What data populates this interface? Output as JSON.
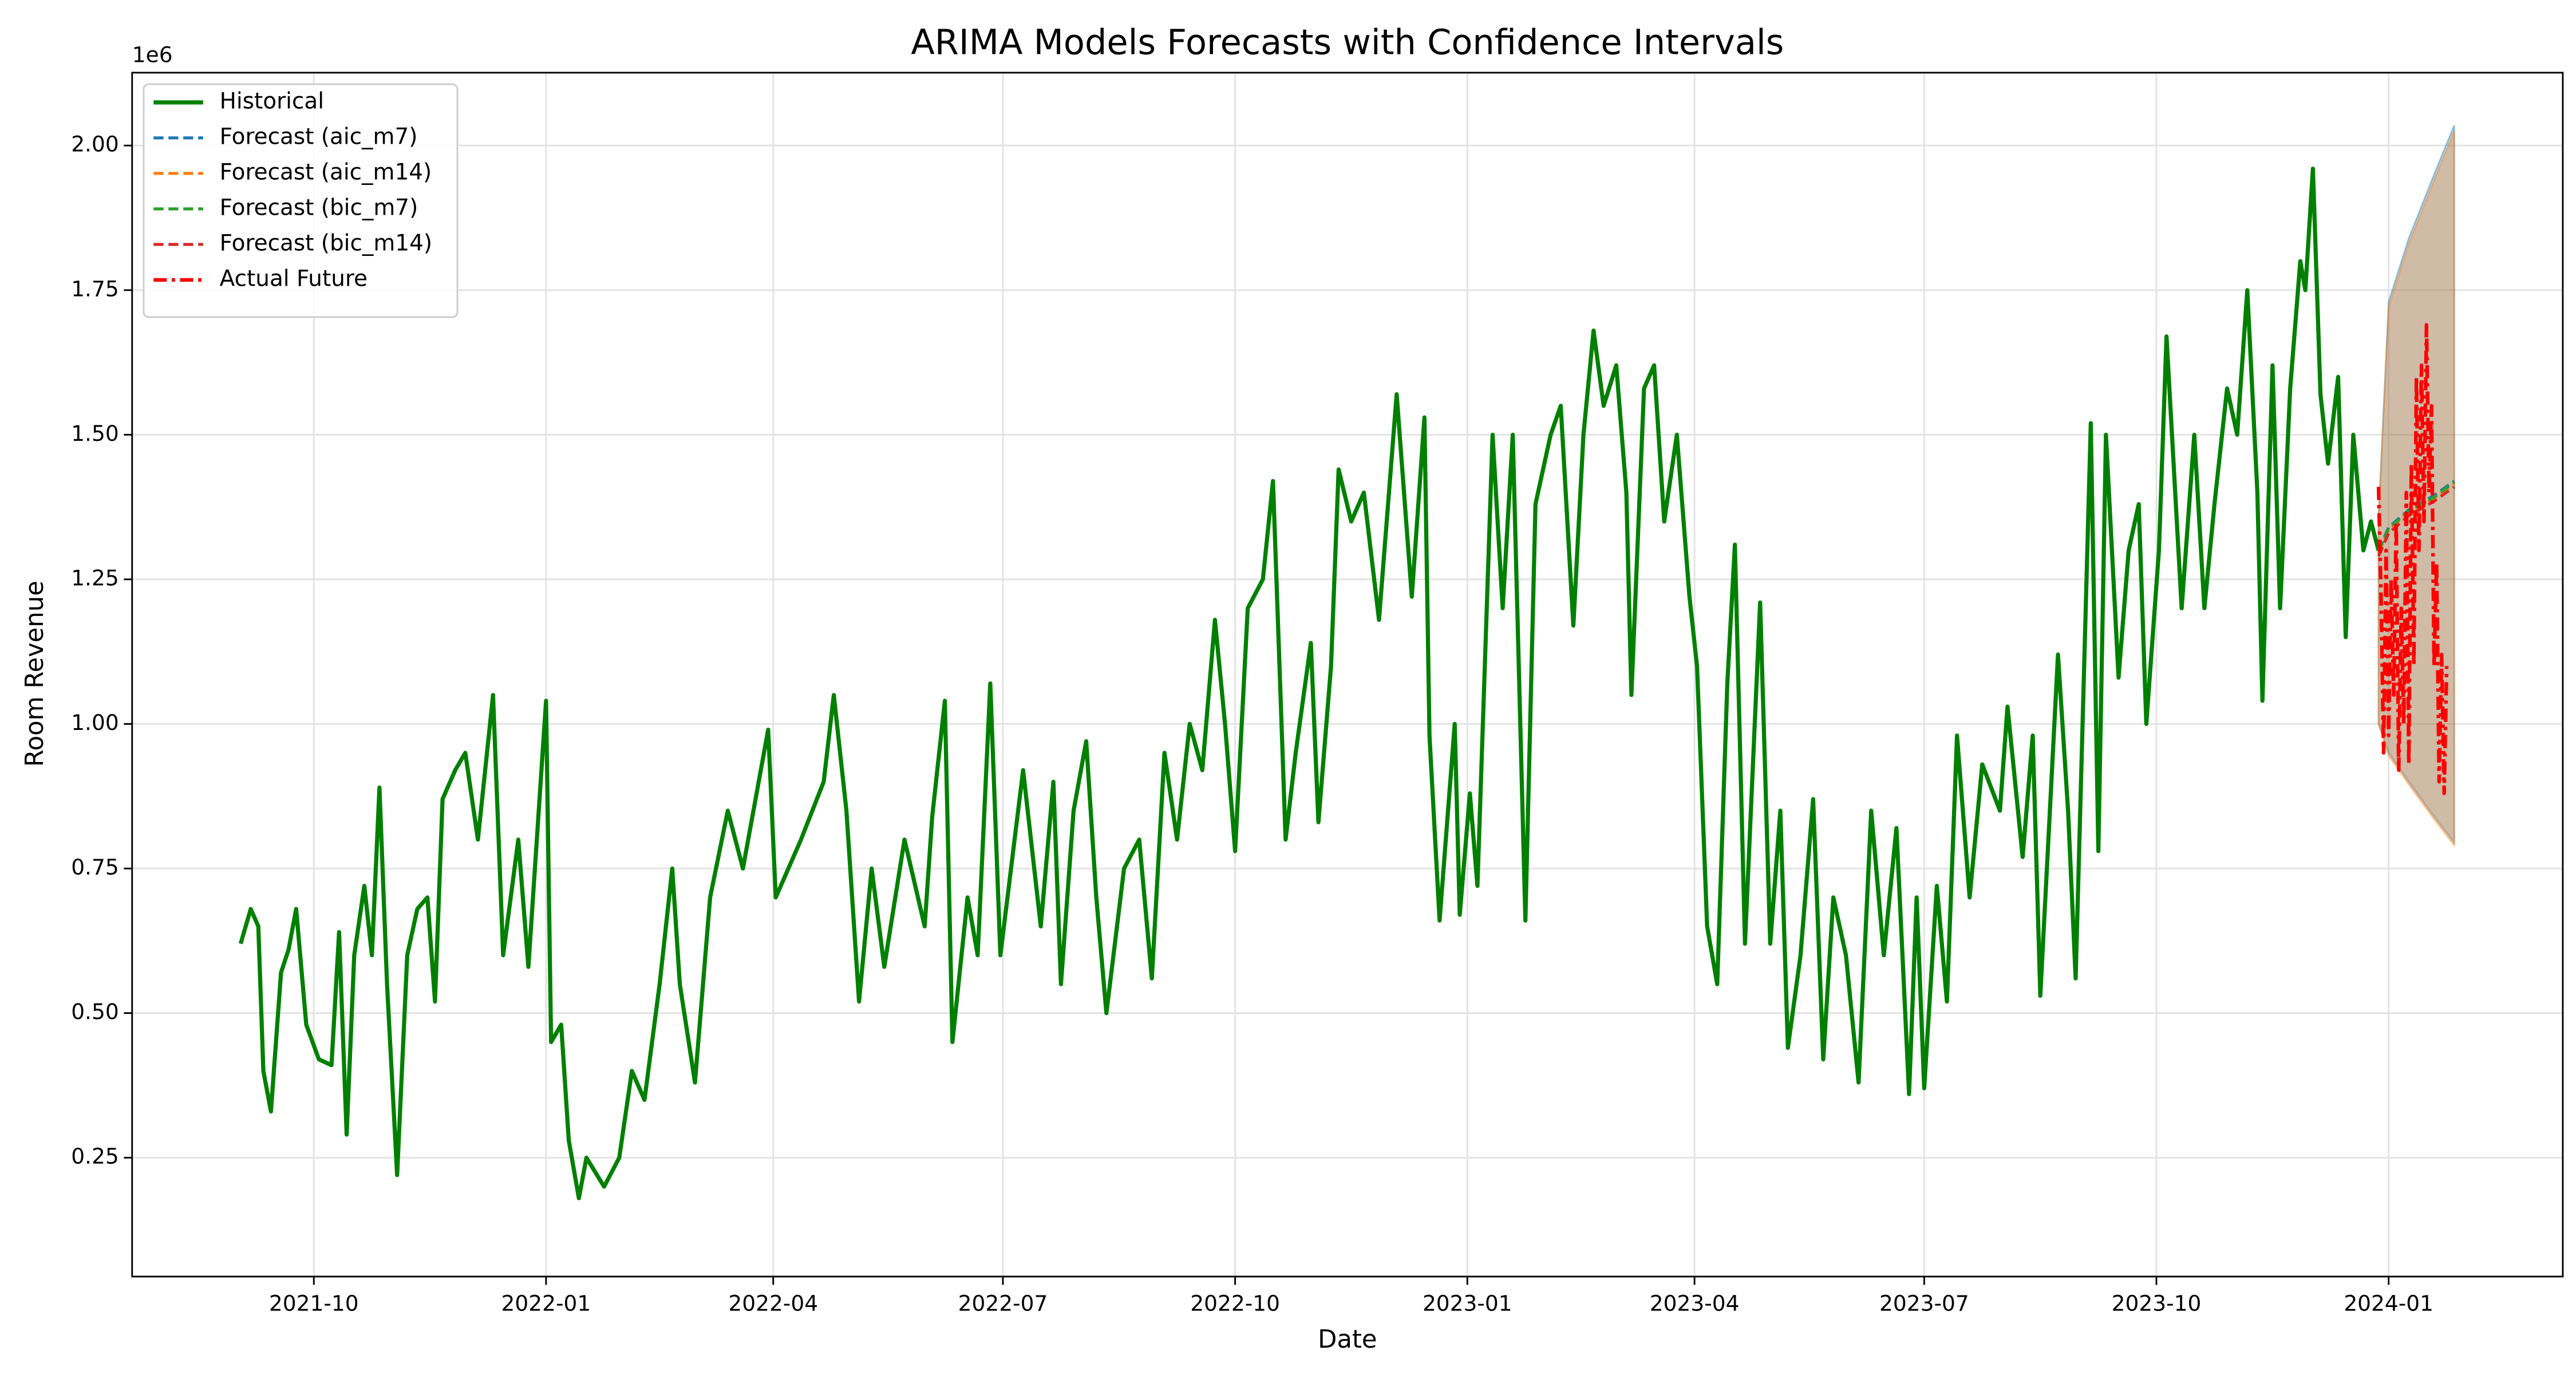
{
  "chart_data": {
    "type": "line",
    "title": "ARIMA Models Forecasts with Confidence Intervals",
    "x_label": "Date",
    "y_label": "Room Revenue",
    "y_offset_label": "1e6",
    "xlim": [
      -72,
      891
    ],
    "ylim": [
      44500,
      2126000
    ],
    "xticks": [
      {
        "value": 0,
        "label": "2021-10"
      },
      {
        "value": 92,
        "label": "2022-01"
      },
      {
        "value": 182,
        "label": "2022-04"
      },
      {
        "value": 273,
        "label": "2022-07"
      },
      {
        "value": 365,
        "label": "2022-10"
      },
      {
        "value": 457,
        "label": "2023-01"
      },
      {
        "value": 547,
        "label": "2023-04"
      },
      {
        "value": 638,
        "label": "2023-07"
      },
      {
        "value": 730,
        "label": "2023-10"
      },
      {
        "value": 822,
        "label": "2024-01"
      }
    ],
    "yticks": [
      {
        "value": 250000,
        "label": "0.25"
      },
      {
        "value": 500000,
        "label": "0.50"
      },
      {
        "value": 750000,
        "label": "0.75"
      },
      {
        "value": 1000000,
        "label": "1.00"
      },
      {
        "value": 1250000,
        "label": "1.25"
      },
      {
        "value": 1500000,
        "label": "1.50"
      },
      {
        "value": 1750000,
        "label": "1.75"
      },
      {
        "value": 2000000,
        "label": "2.00"
      }
    ],
    "grid": true,
    "legend": "upper left",
    "series": [
      {
        "name": "Historical",
        "color": "#008000",
        "linestyle": "solid",
        "width": 2.5,
        "x": [
          -29,
          -25,
          -22,
          -20,
          -17,
          -13,
          -10,
          -7,
          -3,
          2,
          7,
          10,
          13,
          16,
          20,
          23,
          26,
          29,
          33,
          37,
          41,
          45,
          48,
          51,
          56,
          60,
          65,
          71,
          75,
          81,
          85,
          92,
          94,
          98,
          101,
          105,
          108,
          115,
          121,
          126,
          131,
          137,
          142,
          145,
          151,
          157,
          164,
          170,
          180,
          183,
          193,
          202,
          206,
          211,
          216,
          221,
          226,
          234,
          242,
          245,
          250,
          253,
          259,
          263,
          268,
          272,
          281,
          288,
          293,
          296,
          301,
          306,
          310,
          314,
          321,
          327,
          332,
          337,
          342,
          347,
          352,
          357,
          361,
          365,
          370,
          376,
          380,
          385,
          389,
          395,
          398,
          403,
          406,
          411,
          416,
          422,
          429,
          435,
          440,
          442,
          446,
          452,
          454,
          458,
          461,
          467,
          471,
          475,
          480,
          484,
          490,
          494,
          499,
          503,
          507,
          511,
          516,
          520,
          522,
          527,
          531,
          535,
          540,
          545,
          548,
          552,
          556,
          560,
          563,
          567,
          573,
          577,
          581,
          584,
          589,
          594,
          598,
          602,
          607,
          612,
          617,
          622,
          627,
          632,
          635,
          638,
          643,
          647,
          651,
          656,
          661,
          668,
          671,
          677,
          681,
          684,
          691,
          695,
          698,
          704,
          707,
          710,
          715,
          719,
          723,
          726,
          731,
          734,
          740,
          745,
          749,
          753,
          758,
          762,
          766,
          770,
          772,
          776,
          779,
          783,
          787,
          789,
          792,
          795,
          798,
          802,
          805,
          808,
          812,
          815,
          818
        ],
        "values": [
          620000,
          680000,
          650000,
          400000,
          330000,
          570000,
          610000,
          680000,
          480000,
          420000,
          410000,
          640000,
          290000,
          600000,
          720000,
          600000,
          890000,
          550000,
          220000,
          600000,
          680000,
          700000,
          520000,
          870000,
          920000,
          950000,
          800000,
          1050000,
          600000,
          800000,
          580000,
          1040000,
          450000,
          480000,
          280000,
          180000,
          250000,
          200000,
          250000,
          400000,
          350000,
          550000,
          750000,
          550000,
          380000,
          700000,
          850000,
          750000,
          990000,
          700000,
          800000,
          900000,
          1050000,
          850000,
          520000,
          750000,
          580000,
          800000,
          650000,
          840000,
          1040000,
          450000,
          700000,
          600000,
          1070000,
          600000,
          920000,
          650000,
          900000,
          550000,
          850000,
          970000,
          700000,
          500000,
          750000,
          800000,
          560000,
          950000,
          800000,
          1000000,
          920000,
          1180000,
          1000000,
          780000,
          1200000,
          1250000,
          1420000,
          800000,
          950000,
          1140000,
          830000,
          1100000,
          1440000,
          1350000,
          1400000,
          1180000,
          1570000,
          1220000,
          1530000,
          980000,
          660000,
          1000000,
          670000,
          880000,
          720000,
          1500000,
          1200000,
          1500000,
          660000,
          1380000,
          1500000,
          1550000,
          1170000,
          1500000,
          1680000,
          1550000,
          1620000,
          1400000,
          1050000,
          1580000,
          1620000,
          1350000,
          1500000,
          1220000,
          1100000,
          650000,
          550000,
          1070000,
          1310000,
          620000,
          1210000,
          620000,
          850000,
          440000,
          600000,
          870000,
          420000,
          700000,
          600000,
          380000,
          850000,
          600000,
          820000,
          360000,
          700000,
          370000,
          720000,
          520000,
          980000,
          700000,
          930000,
          850000,
          1030000,
          770000,
          980000,
          530000,
          1120000,
          850000,
          560000,
          1520000,
          780000,
          1500000,
          1080000,
          1300000,
          1380000,
          1000000,
          1300000,
          1670000,
          1200000,
          1500000,
          1200000,
          1380000,
          1580000,
          1500000,
          1750000,
          1400000,
          1040000,
          1620000,
          1200000,
          1580000,
          1800000,
          1750000,
          1960000,
          1570000,
          1450000,
          1600000,
          1150000,
          1500000,
          1300000,
          1350000,
          1300000
        ]
      },
      {
        "name": "Forecast (aic_m7)",
        "color": "#1f77b4",
        "linestyle": "dashed",
        "width": 1.8,
        "x": [
          818,
          822,
          830,
          840,
          848
        ],
        "values": [
          1300000,
          1340000,
          1370000,
          1395000,
          1420000
        ],
        "lower": [
          1000000,
          950000,
          900000,
          840000,
          795000
        ],
        "upper": [
          1360000,
          1730000,
          1840000,
          1950000,
          2035000
        ]
      },
      {
        "name": "Forecast (aic_m14)",
        "color": "#ff7f0e",
        "linestyle": "dashed",
        "width": 1.8,
        "x": [
          818,
          822,
          830,
          840,
          848
        ],
        "values": [
          1295000,
          1335000,
          1365000,
          1390000,
          1415000
        ],
        "lower": [
          1000000,
          945000,
          895000,
          835000,
          790000
        ],
        "upper": [
          1350000,
          1720000,
          1830000,
          1940000,
          2025000
        ]
      },
      {
        "name": "Forecast (bic_m7)",
        "color": "#2ca02c",
        "linestyle": "dashed",
        "width": 1.8,
        "x": [
          818,
          822,
          830,
          840,
          848
        ],
        "values": [
          1298000,
          1338000,
          1368000,
          1392000,
          1418000
        ]
      },
      {
        "name": "Forecast (bic_m14)",
        "color": "#d62728",
        "linestyle": "dashed",
        "width": 1.8,
        "x": [
          818,
          822,
          830,
          840,
          848
        ],
        "values": [
          1290000,
          1330000,
          1360000,
          1385000,
          1410000
        ]
      },
      {
        "name": "Actual Future",
        "color": "#ff0000",
        "linestyle": "dashdot",
        "width": 2.2,
        "x": [
          818,
          819,
          820,
          821,
          822,
          823,
          824,
          825,
          826,
          827,
          828,
          829,
          830,
          831,
          832,
          833,
          834,
          835,
          836,
          837,
          838,
          839,
          840,
          841,
          842,
          843,
          844,
          845
        ],
        "values": [
          1410000,
          1220000,
          950000,
          1300000,
          980000,
          1250000,
          1050000,
          1350000,
          920000,
          1200000,
          1000000,
          1400000,
          930000,
          1450000,
          1100000,
          1600000,
          1300000,
          1620000,
          1350000,
          1690000,
          1400000,
          1550000,
          1100000,
          1280000,
          900000,
          1120000,
          880000,
          1100000
        ]
      }
    ]
  }
}
